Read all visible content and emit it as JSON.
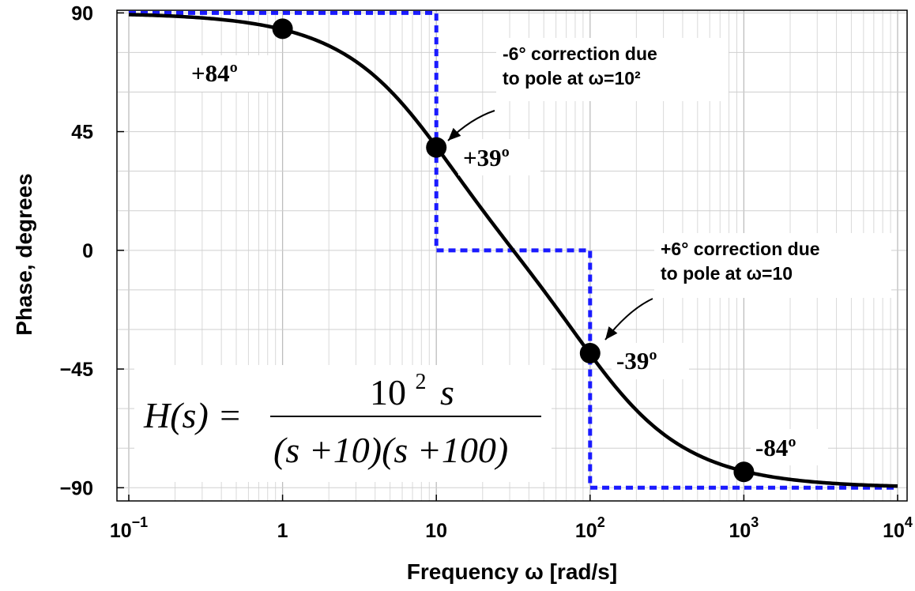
{
  "chart_data": {
    "type": "line",
    "title": "",
    "xlabel": "Frequency ω [rad/s]",
    "ylabel": "Phase, degrees",
    "x_scale": "log",
    "xlim": [
      0.1,
      10000
    ],
    "ylim": [
      -95,
      91
    ],
    "grid": true,
    "x_ticks": [
      {
        "value": 0.1,
        "base": "10",
        "exp": "−1"
      },
      {
        "value": 1,
        "base": "1",
        "exp": ""
      },
      {
        "value": 10,
        "base": "10",
        "exp": ""
      },
      {
        "value": 100,
        "base": "10",
        "exp": "2"
      },
      {
        "value": 1000,
        "base": "10",
        "exp": "3"
      },
      {
        "value": 10000,
        "base": "10",
        "exp": "4"
      }
    ],
    "y_ticks": [
      {
        "value": 90,
        "label": "90"
      },
      {
        "value": 45,
        "label": "45"
      },
      {
        "value": 0,
        "label": "0"
      },
      {
        "value": -45,
        "label": "−45"
      },
      {
        "value": -90,
        "label": "−90"
      }
    ],
    "series": [
      {
        "kind": "exact",
        "color": "#000000",
        "style": "solid",
        "x": [
          0.1,
          0.2,
          0.5,
          1,
          2,
          5,
          10,
          20,
          31.6,
          50,
          100,
          200,
          500,
          1000,
          2000,
          5000,
          10000
        ],
        "y": [
          89.4,
          88.7,
          86.8,
          83.7,
          77.5,
          60.3,
          39.3,
          13.3,
          0,
          -13.3,
          -39.3,
          -60.3,
          -80.1,
          -83.7,
          -86.4,
          -88.8,
          -89.4
        ]
      },
      {
        "kind": "asymptotic",
        "color": "#1a1aff",
        "style": "dashed",
        "x": [
          0.1,
          10,
          10,
          100,
          100,
          10000
        ],
        "y": [
          90,
          90,
          0,
          0,
          -90,
          -90
        ]
      }
    ],
    "markers": [
      {
        "x": 1,
        "y": 84,
        "label": "+84º"
      },
      {
        "x": 10,
        "y": 39,
        "label": "+39º"
      },
      {
        "x": 100,
        "y": -39,
        "label": "-39º"
      },
      {
        "x": 1000,
        "y": -84,
        "label": "-84º"
      }
    ],
    "annotations": [
      {
        "lines": [
          "-6° correction due",
          "to pole at ω=10²"
        ],
        "target": {
          "x": 10,
          "y": 39
        }
      },
      {
        "lines": [
          "+6° correction due",
          "to pole at ω=10"
        ],
        "target": {
          "x": 100,
          "y": -39
        }
      }
    ],
    "formula": {
      "lhs": "H(s) =",
      "numerator_base": "10",
      "numerator_exp": "2",
      "numerator_var": "s",
      "denominator": "(s +10)(s +100)"
    }
  }
}
